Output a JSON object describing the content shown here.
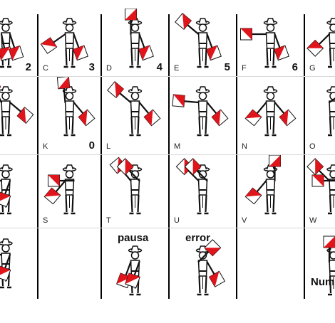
{
  "chart_title": "",
  "colors": {
    "flag_red": "#e0141b",
    "flag_white": "#ffffff",
    "ink": "#111111"
  },
  "rows": [
    {
      "cells": [
        {
          "letter": "",
          "digit": "2",
          "pose": {
            "l": 192,
            "r": 162
          }
        },
        {
          "letter": "C",
          "digit": "3",
          "pose": {
            "l": 125,
            "r": 160
          }
        },
        {
          "letter": "D",
          "digit": "4",
          "pose": {
            "l": 0,
            "r": 160
          }
        },
        {
          "letter": "E",
          "digit": "5",
          "pose": {
            "l": 50,
            "r": 160
          }
        },
        {
          "letter": "F",
          "digit": "6",
          "pose": {
            "l": 90,
            "r": 160
          }
        },
        {
          "letter": "G",
          "digit": "",
          "pose": {
            "l": 135,
            "r": 160
          }
        }
      ]
    },
    {
      "cells": [
        {
          "letter": "",
          "digit": "",
          "pose": {
            "l": 25,
            "r": 130
          }
        },
        {
          "letter": "K",
          "digit": "0",
          "pose": {
            "l": 5,
            "r": 140
          }
        },
        {
          "letter": "L",
          "digit": "",
          "pose": {
            "l": 50,
            "r": 140
          }
        },
        {
          "letter": "M",
          "digit": "",
          "pose": {
            "l": 85,
            "r": 140
          }
        },
        {
          "letter": "N",
          "digit": "",
          "pose": {
            "l": 140,
            "r": 140
          }
        },
        {
          "letter": "O",
          "digit": "",
          "pose": {
            "l": -55,
            "r": 140
          }
        }
      ]
    },
    {
      "cells": [
        {
          "letter": "",
          "digit": "",
          "pose": {
            "l": 90,
            "r": 200
          }
        },
        {
          "letter": "S",
          "digit": "",
          "pose": {
            "l": 140,
            "r": 270
          }
        },
        {
          "letter": "T",
          "digit": "",
          "pose": {
            "l": 40,
            "r": -45
          }
        },
        {
          "letter": "U",
          "digit": "",
          "pose": {
            "l": 45,
            "r": -45
          }
        },
        {
          "letter": "V",
          "digit": "",
          "pose": {
            "l": 140,
            "r": 0
          }
        },
        {
          "letter": "W",
          "digit": "",
          "pose": {
            "l": 45,
            "r": 270
          }
        }
      ]
    },
    {
      "cells": [
        {
          "letter": "",
          "digit": "",
          "pose": {
            "l": 90,
            "r": 200
          }
        },
        {
          "letter": "",
          "digit": "",
          "empty": true
        },
        {
          "letter": "",
          "digit": "",
          "word": "pausa",
          "pose": {
            "l": 160,
            "r": 200
          }
        },
        {
          "letter": "",
          "digit": "",
          "word": "error",
          "pose": {
            "l": -45,
            "r": 150
          }
        },
        {
          "letter": "",
          "digit": "",
          "empty": true
        },
        {
          "letter": "",
          "digit": "",
          "word": "Num",
          "pose": {
            "l": 0,
            "r": 90
          }
        }
      ]
    }
  ]
}
